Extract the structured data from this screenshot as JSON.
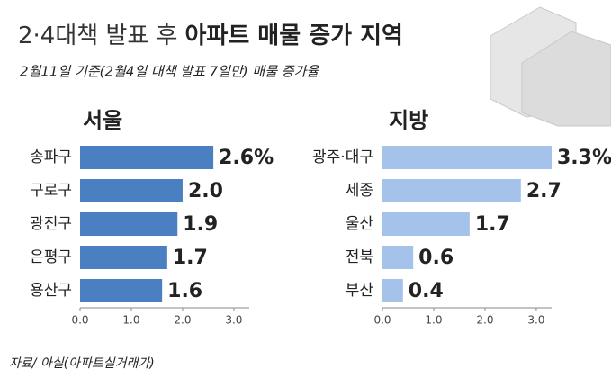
{
  "title": [
    "2·4대책 발표 후",
    "아파트 매물 증가 지역"
  ],
  "subtitle": "2월11일 기준(2월4일 대책 발표 7일만) 매물 증가율",
  "source": "자료/ 아실(아파트실거래가)",
  "chart_data": [
    {
      "type": "bar",
      "orientation": "horizontal",
      "title": "서울",
      "color": "#4a7fc1",
      "categories": [
        "송파구",
        "구로구",
        "광진구",
        "은평구",
        "용산구"
      ],
      "values": [
        2.6,
        2.0,
        1.9,
        1.7,
        1.6
      ],
      "value_labels": [
        "2.6%",
        "2.0",
        "1.9",
        "1.7",
        "1.6"
      ],
      "xlim": [
        0,
        3.3
      ],
      "xticks": [
        {
          "value": 0,
          "label": "0.0"
        },
        {
          "value": 1,
          "label": "1.0"
        },
        {
          "value": 2,
          "label": "2.0"
        },
        {
          "value": 3,
          "label": "3.0"
        }
      ]
    },
    {
      "type": "bar",
      "orientation": "horizontal",
      "title": "지방",
      "color": "#a4c2ea",
      "categories": [
        "광주·대구",
        "세종",
        "울산",
        "전북",
        "부산"
      ],
      "values": [
        3.3,
        2.7,
        1.7,
        0.6,
        0.4
      ],
      "value_labels": [
        "3.3%",
        "2.7",
        "1.7",
        "0.6",
        "0.4"
      ],
      "xlim": [
        0,
        3.3
      ],
      "xticks": [
        {
          "value": 0,
          "label": "0.0"
        },
        {
          "value": 1,
          "label": "1.0"
        },
        {
          "value": 2,
          "label": "2.0"
        },
        {
          "value": 3,
          "label": "3.0"
        }
      ]
    }
  ]
}
